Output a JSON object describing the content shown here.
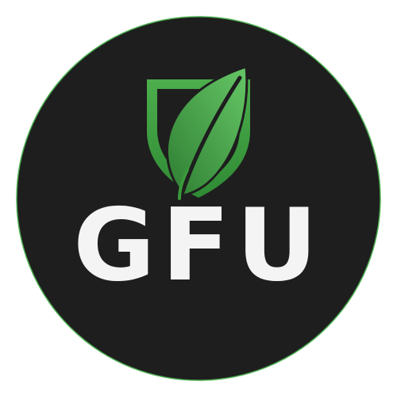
{
  "logo": {
    "text": "GFU",
    "colors": {
      "background": "#ffffff",
      "circle_fill": "#1e1e1e",
      "circle_ring": "#4caf50",
      "shield_green": "#3a9a3a",
      "leaf_light": "#5cc25c",
      "leaf_dark": "#2e7d32",
      "text": "#f4f4f4"
    },
    "icons": [
      "shield-icon",
      "leaf-icon"
    ]
  }
}
